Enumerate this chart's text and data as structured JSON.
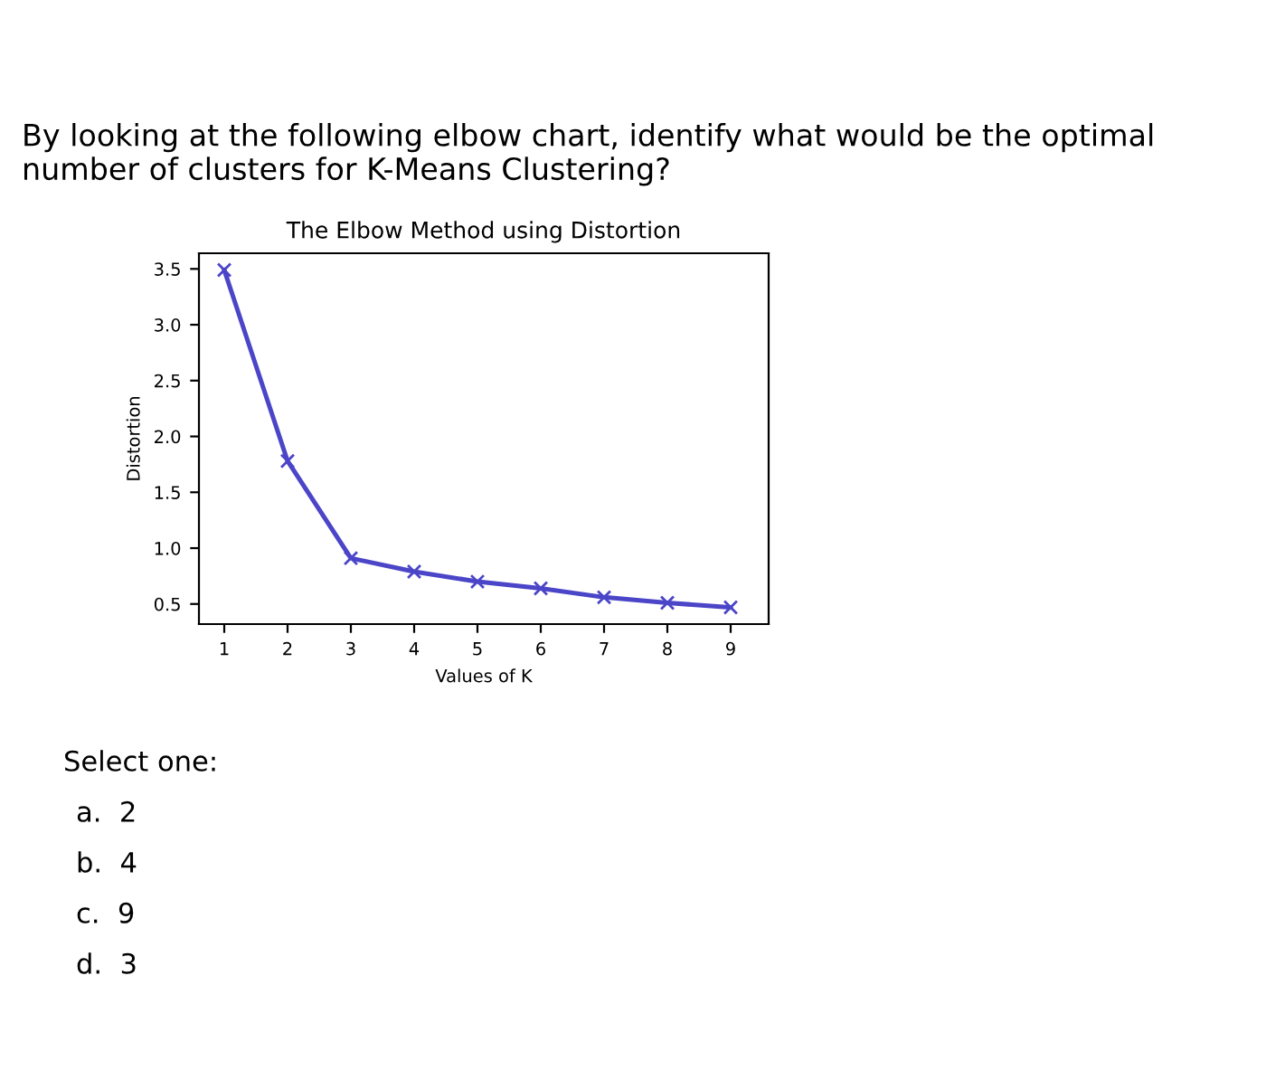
{
  "chart_data": {
    "type": "line",
    "title": "The Elbow Method using Distortion",
    "xlabel": "Values of K",
    "ylabel": "Distortion",
    "x": [
      1,
      2,
      3,
      4,
      5,
      6,
      7,
      8,
      9
    ],
    "series": [
      {
        "color": "#4b45c8",
        "values": [
          3.49,
          1.78,
          0.91,
          0.79,
          0.7,
          0.64,
          0.56,
          0.51,
          0.47
        ]
      }
    ],
    "xlim": [
      0.6,
      9.6
    ],
    "xticks": [
      1,
      2,
      3,
      4,
      5,
      6,
      7,
      8,
      9
    ],
    "ylim": [
      0.32,
      3.64
    ],
    "yticks": [
      0.5,
      {
        "value": 1,
        "label": "1.0"
      },
      1.5,
      {
        "value": 2,
        "label": "2.0"
      },
      2.5,
      {
        "value": 3,
        "label": "3.0"
      },
      3.5
    ],
    "marker": "cross",
    "line_style": "solid",
    "grid": false,
    "legend": false,
    "annotations": [
      "By looking at the following elbow chart, identify what would be the optimal number of clusters for K-Means Clustering?",
      "Select one:",
      "a.  2",
      "b.  4",
      "c.  9",
      "d.  3"
    ]
  }
}
